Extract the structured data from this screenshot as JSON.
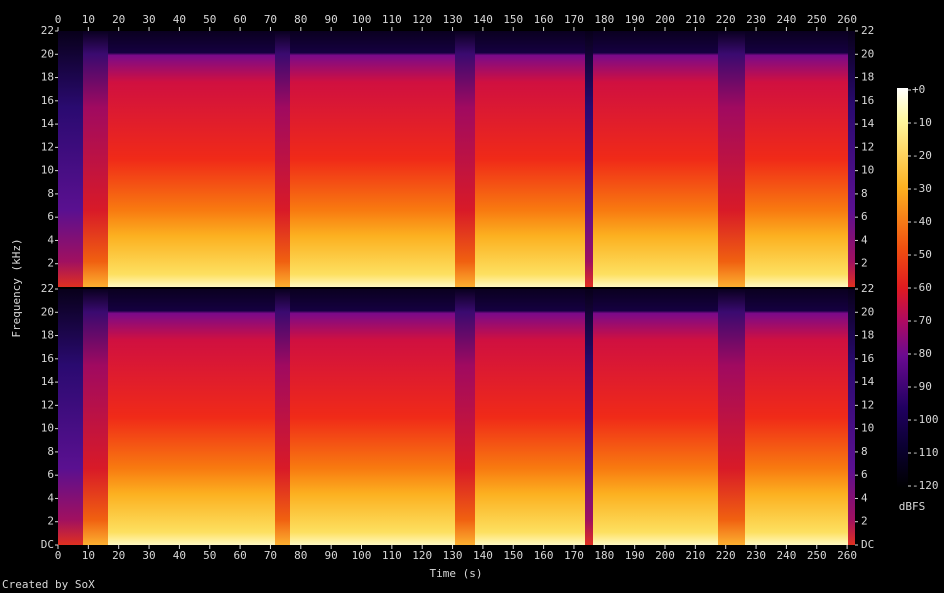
{
  "chart_data": {
    "type": "spectrogram",
    "x_label": "Time (s)",
    "y_label": "Frequency (kHz)",
    "xlim": [
      0,
      262.6
    ],
    "xticks": [
      0,
      10,
      20,
      30,
      40,
      50,
      60,
      70,
      80,
      90,
      100,
      110,
      120,
      130,
      140,
      150,
      160,
      170,
      180,
      190,
      200,
      210,
      220,
      230,
      240,
      250,
      260
    ],
    "channels": [
      {
        "ylim": [
          0,
          22
        ],
        "yticks": [
          2,
          4,
          6,
          8,
          10,
          12,
          14,
          16,
          18,
          20,
          22
        ]
      },
      {
        "ylim": [
          0,
          22
        ],
        "yticks": [
          {
            "value": 0,
            "label": "DC"
          },
          2,
          4,
          6,
          8,
          10,
          12,
          14,
          16,
          18,
          20,
          22
        ]
      }
    ],
    "colorbar": {
      "label": "dBFS",
      "lim": [
        -120,
        0
      ],
      "ticks": [
        {
          "value": 0,
          "label": "+0"
        },
        -10,
        -20,
        -30,
        -40,
        -50,
        -60,
        -70,
        -80,
        -90,
        -100,
        -110,
        -120
      ]
    },
    "footer": "Created by SoX"
  }
}
